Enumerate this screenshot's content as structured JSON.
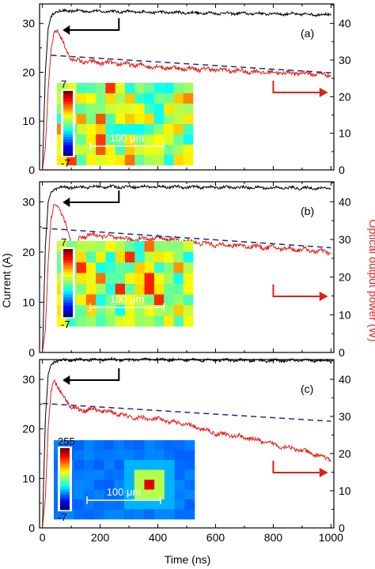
{
  "figure": {
    "xlabel": "Time (ns)",
    "ylabel_left": "Current (A)",
    "ylabel_right": "Optical output power (W)"
  },
  "chart_data": [
    {
      "type": "line",
      "panel_label": "(a)",
      "x_ticks": [
        0,
        200,
        400,
        600,
        800,
        1000
      ],
      "y_left_ticks": [
        0,
        10,
        20,
        30
      ],
      "y_right_ticks": [
        0,
        10,
        20,
        30,
        40
      ],
      "xlim": [
        -10,
        1010
      ],
      "y_left_lim": [
        0,
        34
      ],
      "y_right_lim": [
        0,
        45.3
      ],
      "series": [
        {
          "color": "#000000",
          "axis": "left",
          "x": [
            0,
            10,
            20,
            30,
            40,
            60,
            100,
            200,
            400,
            600,
            800,
            1000
          ],
          "y": [
            0,
            20,
            29,
            31.5,
            32.3,
            32.5,
            32.6,
            32.5,
            32.3,
            32.1,
            32,
            31.8
          ]
        },
        {
          "color": "#e0201a",
          "axis": "right",
          "x": [
            0,
            10,
            20,
            30,
            40,
            50,
            60,
            80,
            100,
            120,
            160,
            200,
            300,
            400,
            500,
            600,
            700,
            800,
            900,
            1000
          ],
          "y": [
            0,
            6,
            22,
            33,
            37.5,
            38,
            36.5,
            33.5,
            30,
            29.8,
            29.5,
            29.3,
            28.8,
            28.1,
            27.6,
            27.4,
            26.9,
            26.6,
            26.4,
            26
          ]
        },
        {
          "color": "#1a2b8f",
          "axis": "right",
          "dashed": true,
          "x": [
            30,
            1000
          ],
          "y": [
            31.3,
            26.5
          ]
        }
      ],
      "arrow_left_color": "#000000",
      "arrow_right_color": "#e0201a",
      "inset": {
        "colorbar_max": "7",
        "colorbar_min": "-7",
        "scale_label": "100 μm",
        "colormap": "jet",
        "hotspot": false
      }
    },
    {
      "type": "line",
      "panel_label": "(b)",
      "x_ticks": [
        0,
        200,
        400,
        600,
        800,
        1000
      ],
      "y_left_ticks": [
        0,
        10,
        20,
        30
      ],
      "y_right_ticks": [
        0,
        10,
        20,
        30,
        40
      ],
      "xlim": [
        -10,
        1010
      ],
      "y_left_lim": [
        0,
        34
      ],
      "y_right_lim": [
        0,
        45.3
      ],
      "series": [
        {
          "color": "#000000",
          "axis": "left",
          "x": [
            0,
            10,
            20,
            30,
            40,
            60,
            100,
            200,
            400,
            600,
            800,
            1000
          ],
          "y": [
            0,
            21,
            30,
            32,
            32.6,
            32.8,
            32.9,
            33,
            33,
            32.9,
            32.8,
            32.7
          ]
        },
        {
          "color": "#e0201a",
          "axis": "right",
          "x": [
            0,
            10,
            20,
            30,
            40,
            50,
            60,
            80,
            100,
            110,
            130,
            160,
            200,
            300,
            400,
            500,
            600,
            700,
            800,
            900,
            1000
          ],
          "y": [
            0,
            6,
            24,
            36,
            39.5,
            39,
            37.5,
            34.5,
            29,
            27.5,
            30.5,
            31.2,
            31,
            30,
            30.4,
            29.5,
            28.6,
            28.3,
            27.8,
            27.3,
            26.5
          ]
        },
        {
          "color": "#1a2b8f",
          "axis": "right",
          "dashed": true,
          "x": [
            0,
            1000
          ],
          "y": [
            33,
            27.8
          ]
        }
      ],
      "arrow_left_color": "#000000",
      "arrow_right_color": "#e0201a",
      "inset": {
        "colorbar_max": "7",
        "colorbar_min": "-7",
        "scale_label": "100 μm",
        "colormap": "jet",
        "hotspot": true
      }
    },
    {
      "type": "line",
      "panel_label": "(c)",
      "x_ticks": [
        0,
        200,
        400,
        600,
        800,
        1000
      ],
      "y_left_ticks": [
        0,
        10,
        20,
        30
      ],
      "y_right_ticks": [
        0,
        10,
        20,
        30,
        40
      ],
      "xlim": [
        -10,
        1010
      ],
      "y_left_lim": [
        0,
        34
      ],
      "y_right_lim": [
        0,
        45.3
      ],
      "series": [
        {
          "color": "#000000",
          "axis": "left",
          "x": [
            0,
            10,
            20,
            30,
            40,
            60,
            100,
            200,
            400,
            600,
            800,
            1000
          ],
          "y": [
            0,
            22,
            31,
            33,
            33.6,
            33.8,
            33.9,
            34,
            34,
            33.9,
            33.8,
            33.8
          ]
        },
        {
          "color": "#e0201a",
          "axis": "right",
          "x": [
            0,
            10,
            20,
            30,
            40,
            50,
            60,
            80,
            100,
            130,
            160,
            200,
            250,
            300,
            400,
            500,
            600,
            700,
            800,
            900,
            950,
            1000
          ],
          "y": [
            0,
            8,
            27,
            37,
            40,
            38.5,
            36.5,
            35,
            32.5,
            31.6,
            32,
            31.6,
            31,
            29.8,
            29.2,
            27.8,
            25.5,
            24.4,
            22.5,
            20.8,
            19.6,
            18.5
          ]
        },
        {
          "color": "#1a2b8f",
          "axis": "right",
          "dashed": true,
          "x": [
            0,
            1000
          ],
          "y": [
            33.5,
            28.7
          ]
        }
      ],
      "arrow_left_color": "#000000",
      "arrow_right_color": "#e0201a",
      "inset": {
        "colorbar_max": "255",
        "colorbar_min": "-7",
        "scale_label": "100 μm",
        "colormap": "jet",
        "hotspot": true
      }
    }
  ]
}
